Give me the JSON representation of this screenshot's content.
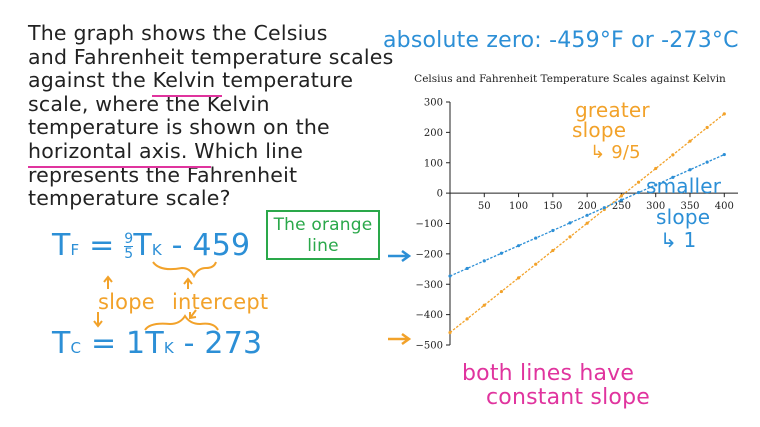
{
  "question": {
    "lines": [
      "The graph shows the Celsius",
      "and Fahrenheit temperature scales",
      "against the Kelvin temperature",
      "scale, where the Kelvin",
      "temperature is shown on the",
      "horizontal axis. Which line",
      "represents the Fahrenheit",
      "temperature scale?"
    ]
  },
  "absolute_zero_note": "absolute zero: -459°F or -273°C",
  "answer": {
    "line1": "The orange",
    "line2": "line"
  },
  "equations": {
    "fahrenheit_lhs": "T",
    "fahrenheit_sub": "F",
    "fahrenheit_eq": "=",
    "fahrenheit_frac_num": "9",
    "fahrenheit_frac_den": "5",
    "fahrenheit_var": "T",
    "fahrenheit_var_sub": "K",
    "fahrenheit_intercept": "- 459",
    "celsius_lhs": "T",
    "celsius_sub": "C",
    "celsius_rhs": "= 1T",
    "celsius_var_sub": "K",
    "celsius_intercept": "- 273",
    "slope_label": "slope",
    "intercept_label": "intercept"
  },
  "annotations": {
    "greater": "greater",
    "greater_slope": "slope",
    "greater_slope_value": "↳ 9/5",
    "smaller": "smaller",
    "smaller_slope": "slope",
    "smaller_slope_value": "↳ 1",
    "both_lines_1": "both lines have",
    "both_lines_2": "constant slope"
  },
  "colors": {
    "orange": "#f2a22a",
    "blue": "#2c8fd6",
    "pink": "#e0349e",
    "green": "#2aa84a"
  },
  "chart_data": {
    "type": "line",
    "title": "Celsius and Fahrenheit Temperature Scales against Kelvin",
    "xlim": [
      0,
      420
    ],
    "ylim": [
      -500,
      300
    ],
    "x_ticks": [
      50,
      100,
      150,
      200,
      250,
      300,
      350,
      400
    ],
    "y_ticks": [
      300,
      200,
      100,
      0,
      -100,
      -200,
      -300,
      -400,
      -500
    ],
    "y_tick_labels": [
      "300",
      "200",
      "100",
      "0",
      "−100",
      "−200",
      "−300",
      "−400",
      "−500"
    ],
    "grid": false,
    "series": [
      {
        "color": "#f2a22a",
        "x": [
          0,
          25,
          50,
          75,
          100,
          125,
          150,
          175,
          200,
          225,
          250,
          275,
          300,
          325,
          350,
          375,
          400
        ],
        "y": [
          -459,
          -414,
          -369,
          -324,
          -279,
          -234,
          -189,
          -144,
          -99,
          -54,
          -9,
          36,
          81,
          126,
          171,
          216,
          261
        ]
      },
      {
        "color": "#2c8fd6",
        "x": [
          0,
          25,
          50,
          75,
          100,
          125,
          150,
          175,
          200,
          225,
          250,
          275,
          300,
          325,
          350,
          375,
          400
        ],
        "y": [
          -273,
          -248,
          -223,
          -198,
          -173,
          -148,
          -123,
          -98,
          -73,
          -48,
          -23,
          2,
          27,
          52,
          77,
          102,
          127
        ]
      }
    ]
  }
}
